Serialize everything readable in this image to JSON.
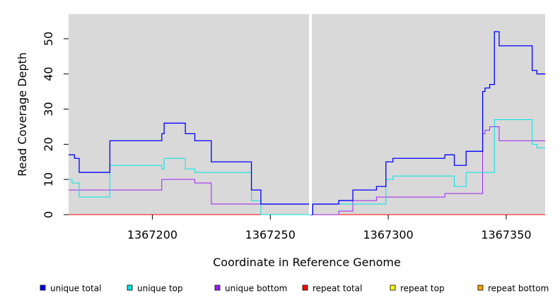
{
  "chart_data": {
    "type": "line",
    "title": "",
    "xlabel": "Coordinate in Reference Genome",
    "ylabel": "Read Coverage Depth",
    "xlim": [
      1367164.5,
      1367366.5
    ],
    "ylim": [
      0,
      57
    ],
    "xticks": [
      1367200,
      1367250,
      1367300,
      1367350
    ],
    "yticks": [
      0,
      10,
      20,
      30,
      40,
      50
    ],
    "xtick_labels": [
      "1367200",
      "1367250",
      "1367300",
      "1367350"
    ],
    "ytick_labels": [
      "0",
      "10",
      "20",
      "30",
      "40",
      "50"
    ],
    "gap": {
      "x": 1367267
    },
    "grid": false,
    "legend_position": "bottom",
    "series": [
      {
        "name": "unique total",
        "color": "#0000ff",
        "steps": [
          [
            1367164.5,
            17
          ],
          [
            1367167,
            16
          ],
          [
            1367169,
            12
          ],
          [
            1367182,
            21
          ],
          [
            1367204,
            23
          ],
          [
            1367205,
            26
          ],
          [
            1367214,
            23
          ],
          [
            1367218,
            21
          ],
          [
            1367225,
            15
          ],
          [
            1367242,
            7
          ],
          [
            1367246,
            3
          ],
          [
            1367267,
            0
          ],
          [
            1367268,
            3
          ],
          [
            1367279,
            4
          ],
          [
            1367285,
            7
          ],
          [
            1367295,
            8
          ],
          [
            1367299,
            15
          ],
          [
            1367302,
            16
          ],
          [
            1367324,
            17
          ],
          [
            1367328,
            14
          ],
          [
            1367333,
            18
          ],
          [
            1367340,
            35
          ],
          [
            1367341,
            36
          ],
          [
            1367343,
            37
          ],
          [
            1367345,
            52
          ],
          [
            1367347,
            48
          ],
          [
            1367361,
            41
          ],
          [
            1367363,
            40
          ],
          [
            1367366.5,
            40
          ]
        ]
      },
      {
        "name": "unique top",
        "color": "#00e5e5",
        "steps": [
          [
            1367164.5,
            10
          ],
          [
            1367166,
            9
          ],
          [
            1367169,
            5
          ],
          [
            1367182,
            14
          ],
          [
            1367204,
            13
          ],
          [
            1367205,
            16
          ],
          [
            1367214,
            13
          ],
          [
            1367218,
            12
          ],
          [
            1367242,
            4
          ],
          [
            1367246,
            0
          ],
          [
            1367268,
            3
          ],
          [
            1367299,
            10
          ],
          [
            1367302,
            11
          ],
          [
            1367328,
            8
          ],
          [
            1367333,
            12
          ],
          [
            1367345,
            27
          ],
          [
            1367361,
            20
          ],
          [
            1367363,
            19
          ],
          [
            1367366.5,
            19
          ]
        ]
      },
      {
        "name": "unique bottom",
        "color": "#a020f0",
        "steps": [
          [
            1367164.5,
            7
          ],
          [
            1367204,
            10
          ],
          [
            1367218,
            9
          ],
          [
            1367225,
            3
          ],
          [
            1367246,
            3
          ],
          [
            1367267,
            0
          ],
          [
            1367279,
            1
          ],
          [
            1367285,
            4
          ],
          [
            1367295,
            5
          ],
          [
            1367324,
            6
          ],
          [
            1367340,
            23
          ],
          [
            1367341,
            24
          ],
          [
            1367343,
            25
          ],
          [
            1367347,
            21
          ],
          [
            1367366.5,
            21
          ]
        ]
      },
      {
        "name": "repeat total",
        "color": "#ff0000",
        "steps": [
          [
            1367164.5,
            0
          ],
          [
            1367366.5,
            0
          ]
        ]
      },
      {
        "name": "repeat top",
        "color": "#ffff00",
        "steps": [
          [
            1367164.5,
            0
          ],
          [
            1367366.5,
            0
          ]
        ]
      },
      {
        "name": "repeat bottom",
        "color": "#ffa500",
        "steps": [
          [
            1367164.5,
            0
          ],
          [
            1367366.5,
            0
          ]
        ]
      }
    ]
  },
  "colors": {
    "plot_background": "#d9d9d9",
    "gap": "#ffffff"
  }
}
